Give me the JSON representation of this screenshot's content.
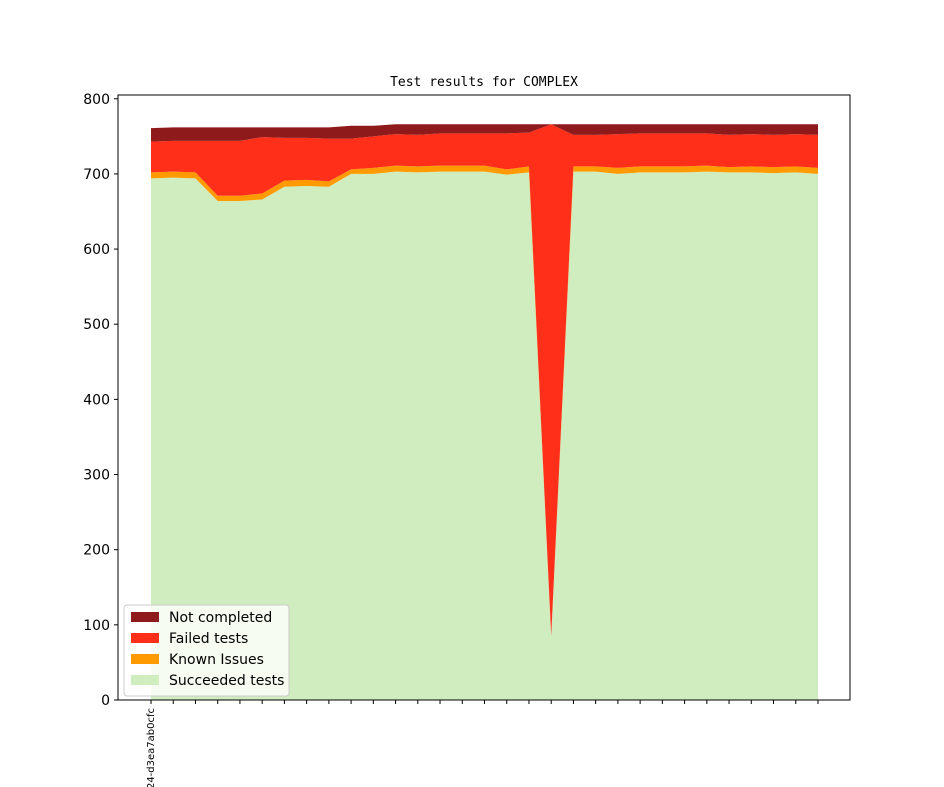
{
  "chart_data": {
    "type": "area",
    "stacked": true,
    "title": "Test results for COMPLEX",
    "xlabel": "",
    "ylabel": "",
    "ylim": [
      0,
      805
    ],
    "yticks": [
      0,
      100,
      200,
      300,
      400,
      500,
      600,
      700,
      800
    ],
    "x_tick_labels": [
      "24-d3ea7ab0cfc"
    ],
    "legend_position": "lower-left",
    "grid": false,
    "series": [
      {
        "name": "Succeeded tests",
        "color": "#cfedbe",
        "values": [
          694,
          695,
          694,
          664,
          664,
          666,
          683,
          684,
          683,
          700,
          700,
          703,
          702,
          703,
          703,
          703,
          699,
          702,
          85,
          703,
          703,
          700,
          702,
          702,
          702,
          703,
          702,
          702,
          701,
          702,
          700
        ]
      },
      {
        "name": "Known Issues",
        "color": "#ff9b00",
        "values": [
          8,
          8,
          8,
          7,
          7,
          8,
          8,
          8,
          7,
          6,
          8,
          8,
          8,
          8,
          8,
          8,
          7,
          8,
          0,
          7,
          7,
          8,
          8,
          8,
          8,
          8,
          7,
          8,
          8,
          8,
          8
        ]
      },
      {
        "name": "Failed tests",
        "color": "#ff2f1a",
        "values": [
          41,
          41,
          42,
          73,
          73,
          75,
          57,
          56,
          57,
          41,
          42,
          42,
          42,
          43,
          43,
          43,
          48,
          45,
          681,
          42,
          42,
          45,
          44,
          44,
          44,
          43,
          43,
          43,
          43,
          43,
          44
        ]
      },
      {
        "name": "Not completed",
        "color": "#8e1a1c",
        "values": [
          18,
          18,
          18,
          18,
          18,
          13,
          14,
          14,
          15,
          17,
          14,
          13,
          14,
          12,
          12,
          12,
          12,
          11,
          0,
          14,
          14,
          13,
          12,
          12,
          12,
          12,
          14,
          13,
          14,
          13,
          14
        ]
      }
    ],
    "legend_order": [
      "Not completed",
      "Failed tests",
      "Known Issues",
      "Succeeded tests"
    ]
  }
}
